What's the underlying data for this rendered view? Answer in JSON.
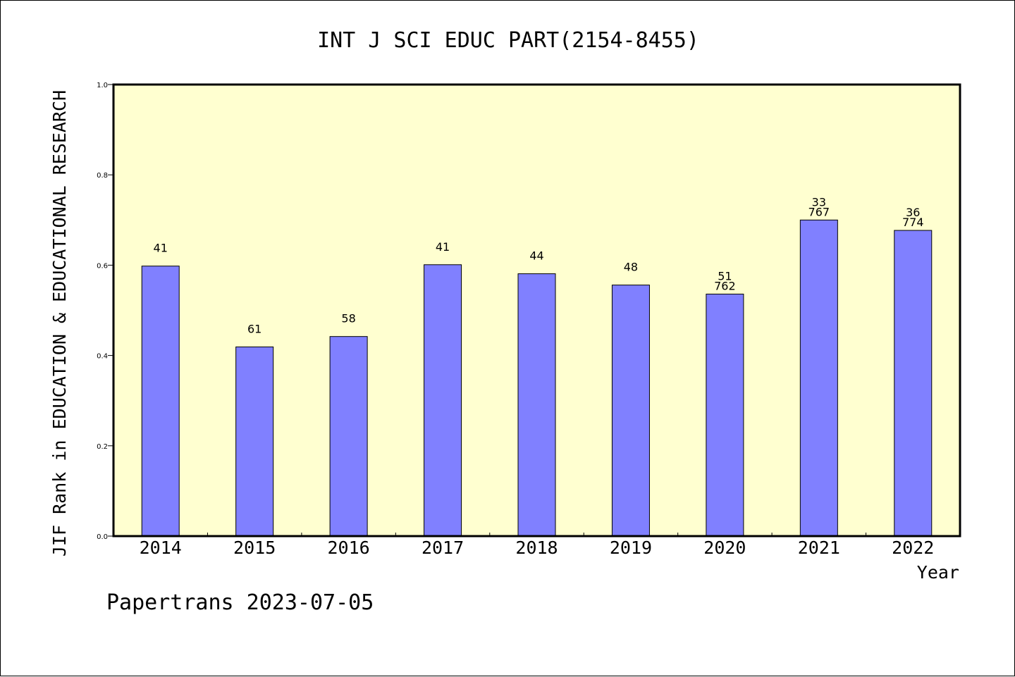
{
  "chart_data": {
    "type": "bar",
    "title": "INT J SCI EDUC PART(2154-8455)",
    "ylabel": "JIF Rank in EDUCATION & EDUCATIONAL RESEARCH",
    "xlabel": "Year",
    "ylim": [
      0,
      1.0
    ],
    "yticks": [
      "0.0",
      "0.2",
      "0.4",
      "0.6",
      "0.8",
      "1.0"
    ],
    "categories": [
      "2014",
      "2015",
      "2016",
      "2017",
      "2018",
      "2019",
      "2020",
      "2021",
      "2022"
    ],
    "values": [
      0.598,
      0.419,
      0.442,
      0.601,
      0.581,
      0.556,
      0.536,
      0.7,
      0.677
    ],
    "labels": [
      [
        "41"
      ],
      [
        "61"
      ],
      [
        "58"
      ],
      [
        "41"
      ],
      [
        "44"
      ],
      [
        "48"
      ],
      [
        "51",
        "762"
      ],
      [
        "33",
        "767"
      ],
      [
        "36",
        "774"
      ]
    ],
    "grid": false,
    "bar_color": "#8080ff",
    "plot_background": "#ffffd0"
  },
  "footer": {
    "credit": "Papertrans 2023-07-05"
  }
}
